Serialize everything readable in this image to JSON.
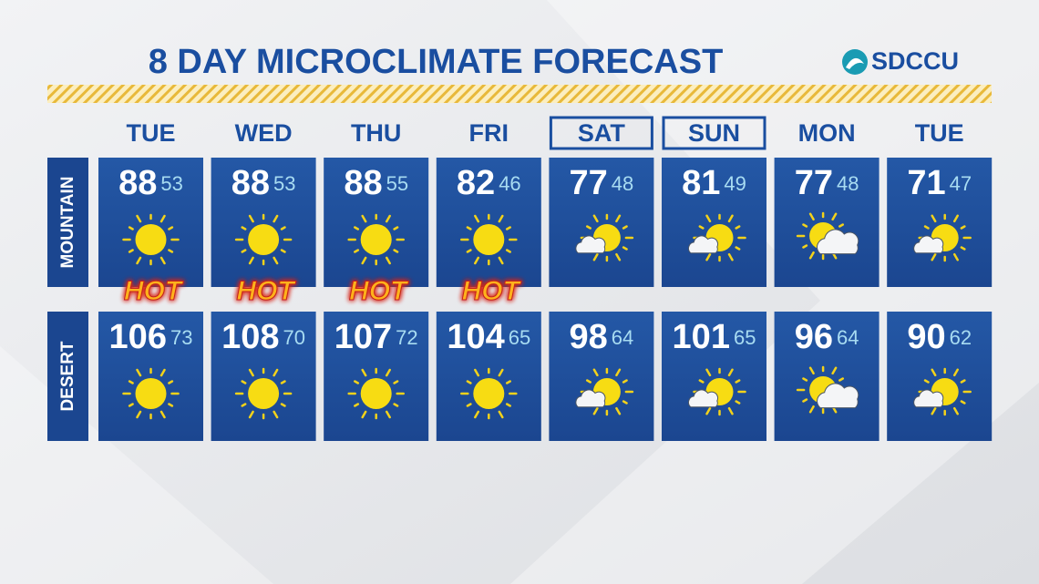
{
  "title": "8 DAY MICROCLIMATE FORECAST",
  "logo": "SDCCU",
  "days": [
    "TUE",
    "WED",
    "THU",
    "FRI",
    "SAT",
    "SUN",
    "MON",
    "TUE"
  ],
  "outlined_days": [
    false,
    false,
    false,
    false,
    true,
    true,
    false,
    false
  ],
  "hot_labels": [
    "HOT",
    "HOT",
    "HOT",
    "HOT"
  ],
  "rows": [
    {
      "label": "MOUNTAIN",
      "highs": [
        88,
        88,
        88,
        82,
        77,
        81,
        77,
        71
      ],
      "lows": [
        53,
        53,
        55,
        46,
        48,
        49,
        48,
        47
      ],
      "icons": [
        "sun",
        "sun",
        "sun",
        "sun",
        "sun-small-cloud",
        "sun-small-cloud",
        "sun-big-cloud",
        "sun-small-cloud"
      ]
    },
    {
      "label": "DESERT",
      "highs": [
        106,
        108,
        107,
        104,
        98,
        101,
        96,
        90
      ],
      "lows": [
        73,
        70,
        72,
        65,
        64,
        65,
        64,
        62
      ],
      "icons": [
        "sun",
        "sun",
        "sun",
        "sun",
        "sun-small-cloud",
        "sun-small-cloud",
        "sun-big-cloud",
        "sun-small-cloud"
      ]
    }
  ]
}
